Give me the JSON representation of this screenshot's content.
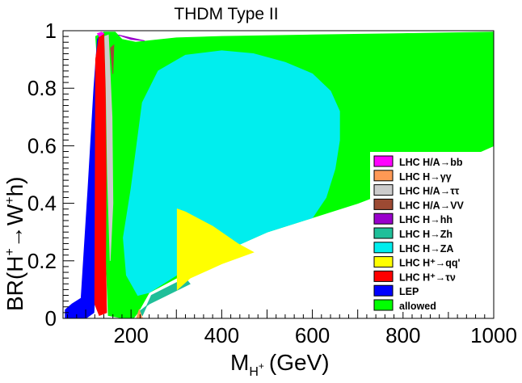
{
  "chart_data": {
    "type": "scatter",
    "title": "THDM Type II",
    "xlabel": "M_{H^{+}} (GeV)",
    "xlabel_parts": [
      "M",
      "H",
      "+",
      "(GeV)"
    ],
    "ylabel": "BR(H^{+} → W^{+}h)",
    "ylabel_parts": [
      "BR(H",
      "+",
      "→W",
      "+",
      "h)"
    ],
    "xlim": [
      50,
      1000
    ],
    "ylim": [
      0,
      1
    ],
    "xticks": [
      200,
      400,
      600,
      800,
      1000
    ],
    "yticks": [
      0,
      0.2,
      0.4,
      0.6,
      0.8,
      1
    ],
    "xtick_labels": [
      "200",
      "400",
      "600",
      "800",
      "1000"
    ],
    "ytick_labels": [
      "0",
      "0.2",
      "0.4",
      "0.6",
      "0.8",
      "1"
    ],
    "legend_position": "right",
    "legend": [
      {
        "label": "LHC H/A→bb",
        "color": "#ff00ff"
      },
      {
        "label": "LHC H→γγ",
        "color": "#ff9955"
      },
      {
        "label": "LHC H/A→ττ",
        "color": "#cccccc"
      },
      {
        "label": "LHC H/A→VV",
        "color": "#9c4a33"
      },
      {
        "label": "LHC H→hh",
        "color": "#9900cc"
      },
      {
        "label": "LHC H→Zh",
        "color": "#1fbf99"
      },
      {
        "label": "LHC H→ZA",
        "color": "#00eeee"
      },
      {
        "label": "LHC H⁺→qq'",
        "color": "#ffff00"
      },
      {
        "label": "LHC H⁺→τν",
        "color": "#ff0000"
      },
      {
        "label": "LEP",
        "color": "#0000ff"
      },
      {
        "label": "allowed",
        "color": "#00ff00"
      }
    ],
    "regions": [
      {
        "name": "allowed",
        "color": "#00ff00",
        "points": [
          [
            122,
            0.98
          ],
          [
            140,
            0.995
          ],
          [
            165,
            0.995
          ],
          [
            180,
            0.97
          ],
          [
            210,
            0.96
          ],
          [
            300,
            0.975
          ],
          [
            400,
            0.98
          ],
          [
            600,
            0.985
          ],
          [
            800,
            0.99
          ],
          [
            1000,
            0.995
          ],
          [
            1000,
            0.6
          ],
          [
            900,
            0.53
          ],
          [
            800,
            0.46
          ],
          [
            700,
            0.4
          ],
          [
            600,
            0.35
          ],
          [
            500,
            0.3
          ],
          [
            400,
            0.23
          ],
          [
            300,
            0.14
          ],
          [
            240,
            0.09
          ],
          [
            215,
            0.02
          ],
          [
            205,
            0
          ],
          [
            185,
            0
          ],
          [
            150,
            0.01
          ],
          [
            140,
            0.4
          ],
          [
            130,
            0.8
          ]
        ]
      },
      {
        "name": "LHC H→Zh",
        "color": "#1fbf99",
        "points": [
          [
            215,
            0.02
          ],
          [
            225,
            0.01
          ],
          [
            245,
            0.08
          ],
          [
            320,
            0.14
          ],
          [
            330,
            0.12
          ],
          [
            240,
            0.05
          ]
        ]
      },
      {
        "name": "LHC H→ZA",
        "color": "#00eeee",
        "points": [
          [
            183,
            0.28
          ],
          [
            200,
            0.45
          ],
          [
            225,
            0.75
          ],
          [
            260,
            0.86
          ],
          [
            320,
            0.915
          ],
          [
            400,
            0.93
          ],
          [
            470,
            0.92
          ],
          [
            540,
            0.89
          ],
          [
            600,
            0.85
          ],
          [
            640,
            0.79
          ],
          [
            660,
            0.72
          ],
          [
            660,
            0.62
          ],
          [
            650,
            0.52
          ],
          [
            630,
            0.42
          ],
          [
            600,
            0.35
          ],
          [
            500,
            0.3
          ],
          [
            400,
            0.23
          ],
          [
            330,
            0.2
          ],
          [
            300,
            0.15
          ],
          [
            240,
            0.09
          ],
          [
            215,
            0.08
          ],
          [
            190,
            0.15
          ]
        ]
      },
      {
        "name": "LHC H⁺→qq'",
        "color": "#ffff00",
        "points": [
          [
            302,
            0.1
          ],
          [
            302,
            0.38
          ],
          [
            320,
            0.37
          ],
          [
            380,
            0.32
          ],
          [
            435,
            0.26
          ],
          [
            470,
            0.23
          ],
          [
            400,
            0.19
          ],
          [
            330,
            0.14
          ]
        ]
      },
      {
        "name": "LEP",
        "color": "#0000ff",
        "points": [
          [
            55,
            0.0
          ],
          [
            55,
            0.03
          ],
          [
            70,
            0.05
          ],
          [
            90,
            0.07
          ],
          [
            105,
            0.45
          ],
          [
            118,
            0.8
          ],
          [
            126,
            0.97
          ],
          [
            130,
            0.98
          ],
          [
            132,
            0.75
          ],
          [
            128,
            0.5
          ],
          [
            124,
            0.2
          ],
          [
            118,
            0.02
          ],
          [
            100,
            0
          ]
        ]
      },
      {
        "name": "LHC H⁺→τν",
        "color": "#ff0000",
        "points": [
          [
            120,
            0.05
          ],
          [
            122,
            0.9
          ],
          [
            130,
            0.985
          ],
          [
            140,
            0.99
          ],
          [
            143,
            0.8
          ],
          [
            145,
            0.5
          ],
          [
            144,
            0.2
          ],
          [
            146,
            0.02
          ],
          [
            130,
            0.01
          ]
        ]
      },
      {
        "name": "LHC H/A→ττ",
        "color": "#cccccc",
        "points": [
          [
            142,
            0.98
          ],
          [
            150,
            0.985
          ],
          [
            158,
            0.7
          ],
          [
            160,
            0.4
          ],
          [
            154,
            0.2
          ],
          [
            148,
            0.5
          ],
          [
            145,
            0.8
          ]
        ]
      },
      {
        "name": "LHC H/A→bb",
        "color": "#ff00ff",
        "points": [
          [
            126,
            0.99
          ],
          [
            135,
            0.995
          ],
          [
            140,
            0.99
          ],
          [
            130,
            0.98
          ]
        ]
      },
      {
        "name": "LHC H→γγ",
        "color": "#ff9955",
        "points": [
          [
            212,
            0.0
          ],
          [
            225,
            0.0
          ],
          [
            218,
            0.03
          ]
        ]
      },
      {
        "name": "LHC H/A→VV",
        "color": "#9c4a33",
        "points": [
          [
            155,
            0.94
          ],
          [
            162,
            0.95
          ],
          [
            160,
            0.85
          ]
        ]
      },
      {
        "name": "LHC H→hh",
        "color": "#9900cc",
        "points": [
          [
            172,
            0.985
          ],
          [
            200,
            0.975
          ],
          [
            230,
            0.965
          ],
          [
            200,
            0.97
          ]
        ]
      }
    ]
  }
}
